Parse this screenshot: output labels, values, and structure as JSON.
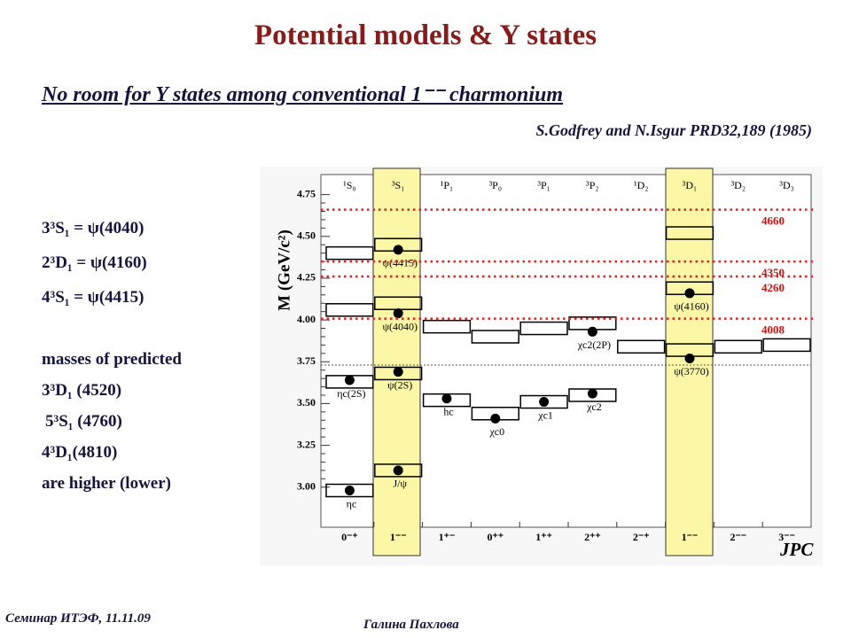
{
  "header": {
    "title": "Potential models & Y states",
    "subtitle": "No room for Y states among conventional 1⁻⁻ charmonium",
    "citation": "S.Godfrey and N.Isgur PRD32,189 (1985)"
  },
  "notes": {
    "lines": [
      "3³S₁ = ψ(4040)",
      "2³D₁ = ψ(4160)",
      "4³S₁ = ψ(4415)",
      "masses of predicted",
      "3³D₁ (4520)",
      "5³S₁ (4760)",
      "4³D₁(4810)",
      "are higher (lower)"
    ]
  },
  "figure": {
    "ylabel": "M (GeV/c²)",
    "xlabel": "JPC",
    "ylim": [
      2.76,
      4.87
    ],
    "yticks": [
      {
        "value": 3,
        "label": "3.00"
      },
      3.25,
      {
        "value": 3.5,
        "label": "3.50"
      },
      3.75,
      {
        "value": 4,
        "label": "4.00"
      },
      4.25,
      {
        "value": 4.5,
        "label": "4.50"
      },
      4.75
    ],
    "threshold": 3.73,
    "y_lines": [
      {
        "value": 4.66,
        "label": "4660"
      },
      {
        "value": 4.35,
        "label": "4350"
      },
      {
        "value": 4.26,
        "label": "4260"
      },
      {
        "value": 4.008,
        "label": "4008"
      }
    ],
    "columns": [
      {
        "label": "¹S₀",
        "jpc": "0⁻⁺",
        "levels": [
          2.98,
          3.63,
          4.06,
          4.4
        ],
        "states": [
          {
            "label": "ηc",
            "mass": 2.98
          },
          {
            "label": "ηc(2S)",
            "mass": 3.64
          }
        ]
      },
      {
        "label": "³S₁",
        "jpc": "1⁻⁻",
        "levels": [
          3.1,
          3.68,
          4.1,
          4.45
        ],
        "states": [
          {
            "label": "J/ψ",
            "mass": 3.1
          },
          {
            "label": "ψ(2S)",
            "mass": 3.69
          },
          {
            "label": "ψ(4040)",
            "mass": 4.04
          },
          {
            "label": "ψ(4415)",
            "mass": 4.42
          }
        ]
      },
      {
        "label": "¹P₁",
        "jpc": "1⁺⁻",
        "levels": [
          3.52,
          3.96
        ],
        "states": [
          {
            "label": "hc",
            "mass": 3.53
          }
        ]
      },
      {
        "label": "³P₀",
        "jpc": "0⁺⁺",
        "levels": [
          3.44,
          3.9
        ],
        "states": [
          {
            "label": "χc0",
            "mass": 3.41
          }
        ]
      },
      {
        "label": "³P₁",
        "jpc": "1⁺⁺",
        "levels": [
          3.51,
          3.95
        ],
        "states": [
          {
            "label": "χc1",
            "mass": 3.51
          }
        ]
      },
      {
        "label": "³P₂",
        "jpc": "2⁺⁺",
        "levels": [
          3.55,
          3.98
        ],
        "states": [
          {
            "label": "χc2",
            "mass": 3.56
          },
          {
            "label": "χc2(2P)",
            "mass": 3.93
          }
        ]
      },
      {
        "label": "¹D₂",
        "jpc": "2⁻⁺",
        "levels": [
          3.84
        ],
        "states": []
      },
      {
        "label": "³D₁",
        "jpc": "1⁻⁻",
        "levels": [
          3.82,
          4.19,
          4.52
        ],
        "states": [
          {
            "label": "ψ(3770)",
            "mass": 3.77
          },
          {
            "label": "ψ(4160)",
            "mass": 4.16
          }
        ]
      },
      {
        "label": "³D₂",
        "jpc": "2⁻⁻",
        "levels": [
          3.84
        ],
        "states": []
      },
      {
        "label": "³D₃",
        "jpc": "3⁻⁻",
        "levels": [
          3.85
        ],
        "states": []
      }
    ]
  },
  "footer": {
    "left": "Семинар ИТЭФ, 11.11.09",
    "right": "Галина Пахлова"
  }
}
